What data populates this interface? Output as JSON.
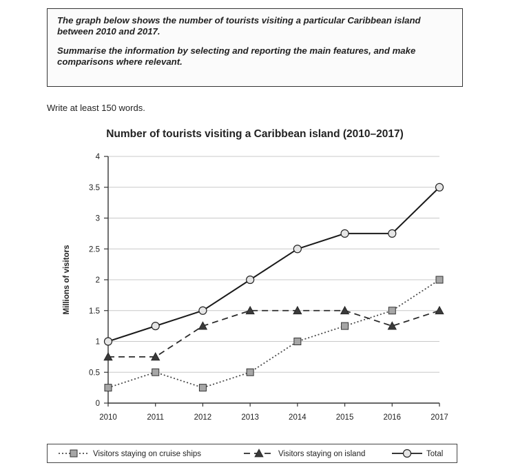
{
  "task": {
    "line1": "The graph below shows the number of tourists visiting a particular Caribbean island between 2010 and 2017.",
    "line2": "Summarise the information by selecting and reporting the main features, and make comparisons where relevant."
  },
  "instruction": "Write at least 150 words.",
  "chart_data": {
    "type": "line",
    "title": "Number of tourists visiting a Caribbean island (2010–2017)",
    "xlabel": "",
    "ylabel": "Millions of visitors",
    "x": [
      "2010",
      "2011",
      "2012",
      "2013",
      "2014",
      "2015",
      "2016",
      "2017"
    ],
    "yticks": [
      "0",
      "0.5",
      "1",
      "1.5",
      "2",
      "2.5",
      "3",
      "3.5",
      "4"
    ],
    "ylim": [
      0,
      4
    ],
    "grid": true,
    "legend_position": "bottom",
    "series": [
      {
        "name": "Visitors staying on cruise ships",
        "values": [
          0.25,
          0.5,
          0.25,
          0.5,
          1,
          1.25,
          1.5,
          2
        ],
        "style": "dotted",
        "marker": "square",
        "color": "#4a4a4a",
        "marker_fill": "#a6a6a6"
      },
      {
        "name": "Visitors staying on island",
        "values": [
          0.75,
          0.75,
          1.25,
          1.5,
          1.5,
          1.5,
          1.25,
          1.5
        ],
        "style": "dashed",
        "marker": "triangle",
        "color": "#2a2a2a",
        "marker_fill": "#3a3a3a"
      },
      {
        "name": "Total",
        "values": [
          1,
          1.25,
          1.5,
          2,
          2.5,
          2.75,
          2.75,
          3.5
        ],
        "style": "solid",
        "marker": "circle",
        "color": "#1a1a1a",
        "marker_fill": "#e6e6e6"
      }
    ]
  }
}
